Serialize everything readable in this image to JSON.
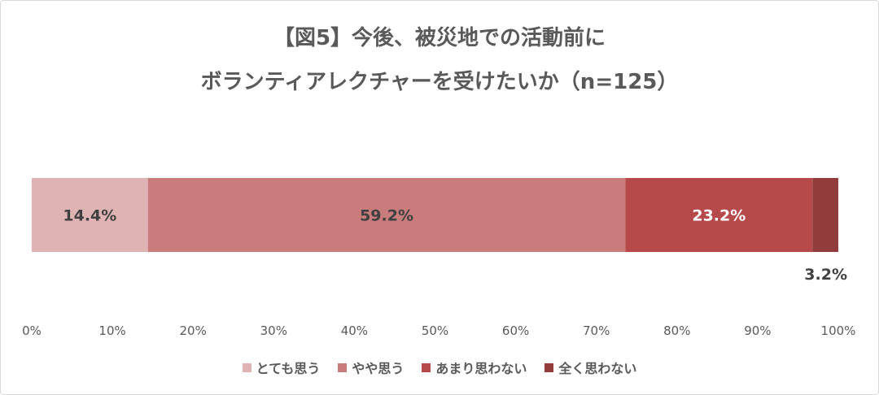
{
  "chart_data": {
    "type": "bar",
    "orientation": "horizontal",
    "stacked": true,
    "title_line1": "【図5】今後、被災地での活動前に",
    "title_line2": "ボランティアレクチャーを受けたいか（n=125）",
    "xlim": [
      0,
      100
    ],
    "x_ticks": [
      "0%",
      "10%",
      "20%",
      "30%",
      "40%",
      "50%",
      "60%",
      "70%",
      "80%",
      "90%",
      "100%"
    ],
    "legend_position": "bottom",
    "grid": false,
    "series": [
      {
        "name": "とても思う",
        "value": 14.4,
        "label": "14.4%",
        "color": "#dfb3b3",
        "label_color": "#404040"
      },
      {
        "name": "やや思う",
        "value": 59.2,
        "label": "59.2%",
        "color": "#c97c7c",
        "label_color": "#404040"
      },
      {
        "name": "あまり思わない",
        "value": 23.2,
        "label": "23.2%",
        "color": "#b64a4a",
        "label_color": "#ffffff"
      },
      {
        "name": "全く思わない",
        "value": 3.2,
        "label": "3.2%",
        "color": "#913b3b",
        "label_color": "#404040"
      }
    ]
  }
}
